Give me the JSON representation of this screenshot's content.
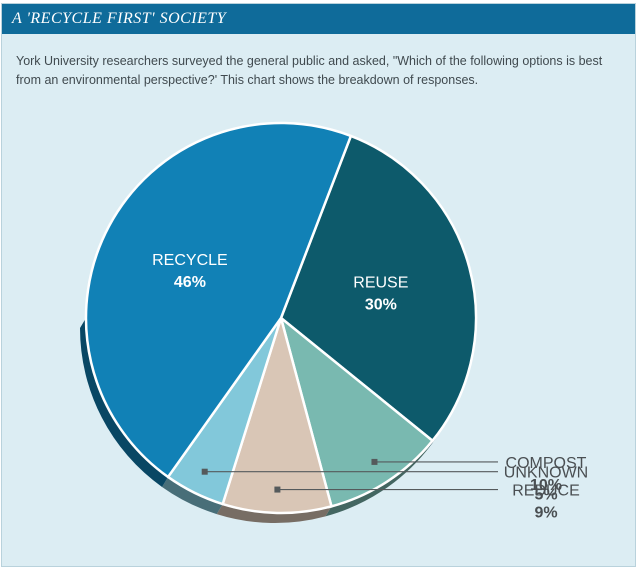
{
  "title": "A 'RECYCLE FIRST' SOCIETY",
  "description": "York University researchers surveyed the general public and asked, \"Which of the following options is best from an environmental perspective?' This chart shows the breakdown of responses.",
  "colors": {
    "title_bar": "#0f6b9a",
    "panel_bg": "#dcedf3"
  },
  "chart_data": {
    "type": "pie",
    "title": "A 'RECYCLE FIRST' SOCIETY",
    "slices": [
      {
        "label": "REUSE",
        "value": 30,
        "value_label": "30%",
        "color": "#0d5a6b",
        "label_position": "inside"
      },
      {
        "label": "COMPOST",
        "value": 10,
        "value_label": "10%",
        "color": "#79b9b0",
        "label_position": "outside"
      },
      {
        "label": "REDUCE",
        "value": 9,
        "value_label": "9%",
        "color": "#d9c6b6",
        "label_position": "outside"
      },
      {
        "label": "UNKNOWN",
        "value": 5,
        "value_label": "5%",
        "color": "#82c8da",
        "label_position": "outside"
      },
      {
        "label": "RECYCLE",
        "value": 46,
        "value_label": "46%",
        "color": "#1181b6",
        "label_position": "inside"
      }
    ],
    "legend": "none"
  }
}
